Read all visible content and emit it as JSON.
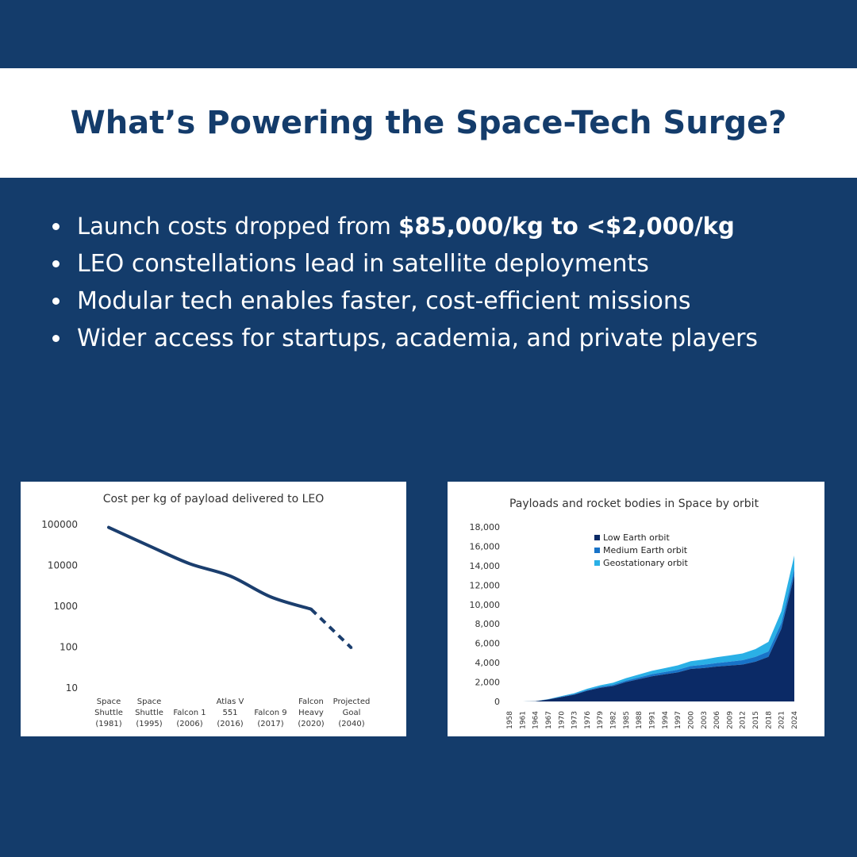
{
  "header": {
    "title": "What’s Powering the Space-Tech Surge?"
  },
  "bullets": [
    {
      "text": "Launch costs dropped from ",
      "bold": "$85,000/kg to <$2,000/kg"
    },
    {
      "text": " LEO constellations lead in satellite deployments"
    },
    {
      "text": " Modular tech enables faster, cost-efficient missions"
    },
    {
      "text": " Wider access for startups, academia, and private players"
    }
  ],
  "colors": {
    "background": "#143c6b",
    "title_band": "#ffffff",
    "title_text": "#143c6b",
    "line": "#1b3e6e",
    "leo": "#0b2a66",
    "meo": "#1873c8",
    "geo": "#2ab0e6"
  },
  "chart_data": [
    {
      "type": "line",
      "title": "Cost per kg of payload delivered to LEO",
      "yscale": "log",
      "ylim": [
        10,
        100000
      ],
      "yticks": [
        "100000",
        "10000",
        "1000",
        "100",
        "10"
      ],
      "categories": [
        [
          "Space",
          "Shuttle",
          "(1981)"
        ],
        [
          "Space",
          "Shuttle",
          "(1995)"
        ],
        [
          "Falcon 1",
          "(2006)"
        ],
        [
          "Atlas V",
          "551",
          "(2016)"
        ],
        [
          "Falcon 9",
          "(2017)"
        ],
        [
          "Falcon",
          "Heavy",
          "(2020)"
        ],
        [
          "Projected",
          "Goal",
          "(2040)"
        ]
      ],
      "values": [
        85000,
        30000,
        11000,
        5500,
        1700,
        850,
        95
      ],
      "projected_from_index": 5
    },
    {
      "type": "area",
      "stacked": true,
      "title": "Payloads and rocket bodies in Space by orbit",
      "ylim": [
        0,
        18000
      ],
      "yticks": [
        "18,000",
        "16,000",
        "14,000",
        "12,000",
        "10,000",
        "8,000",
        "6,000",
        "4,000",
        "2,000",
        "0"
      ],
      "legend_position": "top",
      "x": [
        1958,
        1961,
        1964,
        1967,
        1970,
        1973,
        1976,
        1979,
        1982,
        1985,
        1988,
        1991,
        1994,
        1997,
        2000,
        2003,
        2006,
        2009,
        2012,
        2015,
        2018,
        2021,
        2024
      ],
      "series": [
        {
          "name": "Low Earth orbit",
          "color": "#0b2a66",
          "values": [
            0,
            0,
            20,
            200,
            450,
            700,
            1100,
            1400,
            1600,
            2000,
            2300,
            2600,
            2800,
            3000,
            3350,
            3450,
            3600,
            3700,
            3800,
            4100,
            4600,
            7500,
            13000
          ]
        },
        {
          "name": "Medium Earth orbit",
          "color": "#1873c8",
          "values": [
            0,
            0,
            5,
            20,
            40,
            60,
            80,
            100,
            120,
            150,
            180,
            210,
            240,
            270,
            300,
            330,
            360,
            400,
            450,
            500,
            550,
            600,
            650
          ]
        },
        {
          "name": "Geostationary orbit",
          "color": "#2ab0e6",
          "values": [
            0,
            0,
            5,
            30,
            60,
            90,
            130,
            170,
            210,
            250,
            300,
            350,
            400,
            450,
            500,
            550,
            600,
            650,
            700,
            800,
            1000,
            1200,
            1400
          ]
        }
      ]
    }
  ]
}
